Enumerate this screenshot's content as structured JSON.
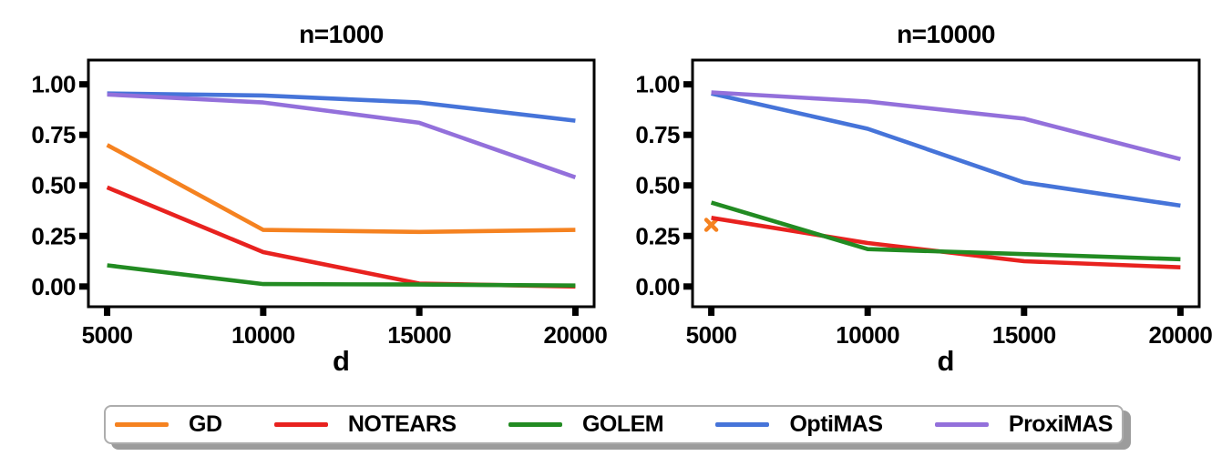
{
  "figure": {
    "background_color": "#ffffff"
  },
  "legend": {
    "position": "bottom",
    "items": [
      {
        "label": "GD",
        "color": "#F58220"
      },
      {
        "label": "NOTEARS",
        "color": "#E8221F"
      },
      {
        "label": "GOLEM",
        "color": "#228B22"
      },
      {
        "label": "OptiMAS",
        "color": "#4674D9"
      },
      {
        "label": "ProxiMAS",
        "color": "#9370DB"
      }
    ]
  },
  "chart_data": [
    {
      "type": "line",
      "title": "n=1000",
      "xlabel": "d",
      "grid": false,
      "x": [
        5000,
        10000,
        15000,
        20000
      ],
      "x_tick_labels": [
        "5000",
        "10000",
        "15000",
        "20000"
      ],
      "y_ticks": [
        0.0,
        0.25,
        0.5,
        0.75,
        1.0
      ],
      "y_tick_labels": [
        "0.00",
        "0.25",
        "0.50",
        "0.75",
        "1.00"
      ],
      "xlim": [
        4400,
        20600
      ],
      "ylim": [
        -0.1,
        1.12
      ],
      "series": [
        {
          "name": "GD",
          "color": "#F58220",
          "values": [
            0.7,
            0.28,
            0.27,
            0.28
          ]
        },
        {
          "name": "NOTEARS",
          "color": "#E8221F",
          "values": [
            0.49,
            0.17,
            0.015,
            0.0
          ]
        },
        {
          "name": "GOLEM",
          "color": "#228B22",
          "values": [
            0.105,
            0.012,
            0.01,
            0.005
          ]
        },
        {
          "name": "OptiMAS",
          "color": "#4674D9",
          "values": [
            0.955,
            0.945,
            0.91,
            0.82
          ]
        },
        {
          "name": "ProxiMAS",
          "color": "#9370DB",
          "values": [
            0.95,
            0.91,
            0.81,
            0.54
          ]
        }
      ]
    },
    {
      "type": "line",
      "title": "n=10000",
      "xlabel": "d",
      "grid": false,
      "x": [
        5000,
        10000,
        15000,
        20000
      ],
      "x_tick_labels": [
        "5000",
        "10000",
        "15000",
        "20000"
      ],
      "y_ticks": [
        0.0,
        0.25,
        0.5,
        0.75,
        1.0
      ],
      "y_tick_labels": [
        "0.00",
        "0.25",
        "0.50",
        "0.75",
        "1.00"
      ],
      "xlim": [
        4400,
        20600
      ],
      "ylim": [
        -0.1,
        1.12
      ],
      "series": [
        {
          "name": "GD",
          "color": "#F58220",
          "marker": "x",
          "values": [
            0.305,
            null,
            null,
            null
          ]
        },
        {
          "name": "NOTEARS",
          "color": "#E8221F",
          "values": [
            0.34,
            0.215,
            0.125,
            0.095
          ]
        },
        {
          "name": "GOLEM",
          "color": "#228B22",
          "values": [
            0.415,
            0.185,
            0.16,
            0.135
          ]
        },
        {
          "name": "OptiMAS",
          "color": "#4674D9",
          "values": [
            0.955,
            0.78,
            0.515,
            0.4
          ]
        },
        {
          "name": "ProxiMAS",
          "color": "#9370DB",
          "values": [
            0.96,
            0.915,
            0.83,
            0.63
          ]
        }
      ]
    }
  ]
}
